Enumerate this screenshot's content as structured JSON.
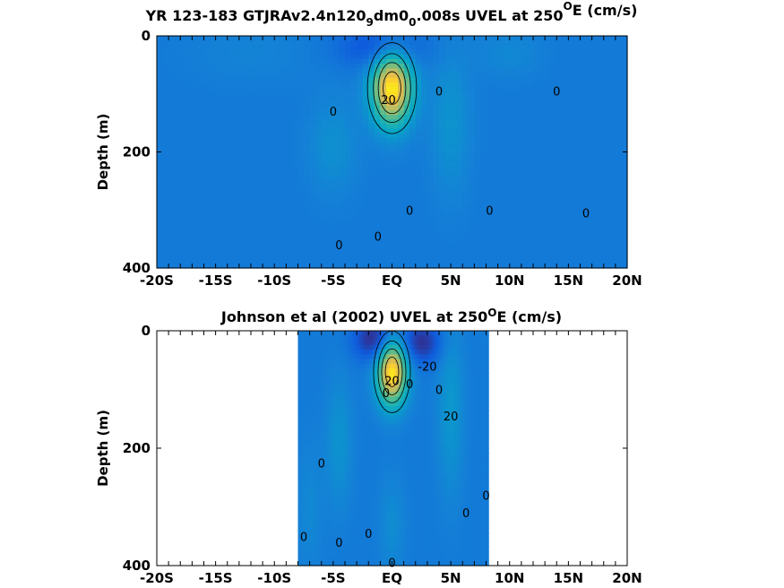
{
  "chart_data": [
    {
      "type": "heatmap",
      "title_parts": [
        "YR 123-183 GTJRAv2.4n120",
        "9",
        "dm0",
        "0",
        ".008s UVEL at 250",
        "O",
        "E (cm/s)"
      ],
      "ylabel": "Depth (m)",
      "xlim": [
        -20,
        20
      ],
      "ylim": [
        0,
        400
      ],
      "y_reversed": true,
      "xticks": [
        -20,
        -15,
        -10,
        -5,
        0,
        5,
        10,
        15,
        20
      ],
      "xtick_labels": [
        "-20S",
        "-15S",
        "-10S",
        "-5S",
        "EQ",
        "5N",
        "10N",
        "15N",
        "20N"
      ],
      "yticks": [
        0,
        200,
        400
      ],
      "ytick_labels": [
        "0",
        "200",
        "400"
      ],
      "data_extent_x": [
        -20,
        20
      ],
      "background_value": -2,
      "jets": [
        {
          "lat": 0,
          "depth": 90,
          "amp": 100,
          "sx": 1.2,
          "sy": 45
        },
        {
          "lat": -5,
          "depth": 190,
          "amp": 12,
          "sx": 1.5,
          "sy": 60
        },
        {
          "lat": 5,
          "depth": 150,
          "amp": 14,
          "sx": 1.2,
          "sy": 90
        },
        {
          "lat": -1,
          "depth": 20,
          "amp": -25,
          "sx": 2.5,
          "sy": 25
        },
        {
          "lat": 10,
          "depth": 30,
          "amp": 8,
          "sx": 2,
          "sy": 30
        },
        {
          "lat": -12,
          "depth": 30,
          "amp": 5,
          "sx": 4,
          "sy": 40
        }
      ],
      "contour_labels": [
        {
          "text": "0",
          "lat": -5,
          "depth": 130
        },
        {
          "text": "20",
          "lat": -0.3,
          "depth": 110
        },
        {
          "text": "0",
          "lat": 4,
          "depth": 95
        },
        {
          "text": "0",
          "lat": 14,
          "depth": 95
        },
        {
          "text": "0",
          "lat": 1.5,
          "depth": 300
        },
        {
          "text": "0",
          "lat": 8.3,
          "depth": 300
        },
        {
          "text": "0",
          "lat": 16.5,
          "depth": 305
        },
        {
          "text": "0",
          "lat": -4.5,
          "depth": 360
        },
        {
          "text": "0",
          "lat": -1.2,
          "depth": 345
        }
      ]
    },
    {
      "type": "heatmap",
      "title_parts": [
        "Johnson et al (2002) UVEL at 250",
        "O",
        "E (cm/s)"
      ],
      "ylabel": "Depth (m)",
      "xlim": [
        -20,
        20
      ],
      "ylim": [
        0,
        400
      ],
      "y_reversed": true,
      "xticks": [
        -20,
        -15,
        -10,
        -5,
        0,
        5,
        10,
        15,
        20
      ],
      "xtick_labels": [
        "-20S",
        "-15S",
        "-10S",
        "-5S",
        "EQ",
        "5N",
        "10N",
        "15N",
        "20N"
      ],
      "yticks": [
        0,
        200,
        400
      ],
      "ytick_labels": [
        "0",
        "200",
        "400"
      ],
      "data_extent_x": [
        -8,
        8.2
      ],
      "background_value": -2,
      "jets": [
        {
          "lat": 0,
          "depth": 70,
          "amp": 100,
          "sx": 0.9,
          "sy": 40
        },
        {
          "lat": -4.5,
          "depth": 190,
          "amp": 14,
          "sx": 0.8,
          "sy": 80
        },
        {
          "lat": 5,
          "depth": 130,
          "amp": 16,
          "sx": 0.8,
          "sy": 110
        },
        {
          "lat": -1.5,
          "depth": 15,
          "amp": -40,
          "sx": 1.2,
          "sy": 25
        },
        {
          "lat": 2.5,
          "depth": 20,
          "amp": -35,
          "sx": 1.2,
          "sy": 25
        },
        {
          "lat": 0,
          "depth": 330,
          "amp": 10,
          "sx": 0.8,
          "sy": 60
        },
        {
          "lat": -7,
          "depth": 300,
          "amp": 8,
          "sx": 0.8,
          "sy": 80
        }
      ],
      "contour_labels": [
        {
          "text": "0",
          "lat": -0.5,
          "depth": 105
        },
        {
          "text": "20",
          "lat": 0,
          "depth": 85
        },
        {
          "text": "-20",
          "lat": 3,
          "depth": 60
        },
        {
          "text": "0",
          "lat": 1.5,
          "depth": 90
        },
        {
          "text": "0",
          "lat": 4,
          "depth": 100
        },
        {
          "text": "20",
          "lat": 5,
          "depth": 145
        },
        {
          "text": "0",
          "lat": -6,
          "depth": 225
        },
        {
          "text": "0",
          "lat": 8,
          "depth": 280
        },
        {
          "text": "0",
          "lat": 6.3,
          "depth": 310
        },
        {
          "text": "0",
          "lat": -7.5,
          "depth": 350
        },
        {
          "text": "0",
          "lat": -4.5,
          "depth": 360
        },
        {
          "text": "0",
          "lat": -2,
          "depth": 345
        },
        {
          "text": "0",
          "lat": 0,
          "depth": 395
        }
      ]
    }
  ]
}
